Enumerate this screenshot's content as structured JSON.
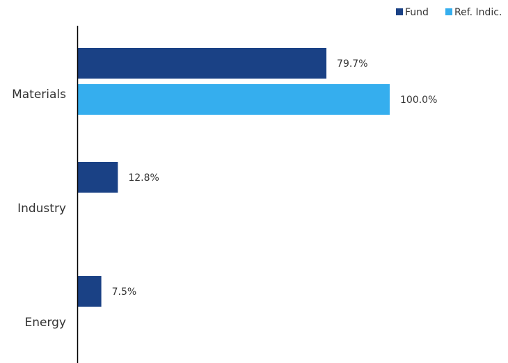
{
  "chart_data": {
    "type": "bar",
    "orientation": "horizontal",
    "categories": [
      "Materials",
      "Industry",
      "Energy"
    ],
    "series": [
      {
        "name": "Fund",
        "color": "#1a4185",
        "values": [
          79.7,
          12.8,
          7.5
        ],
        "labels": [
          "79.7%",
          "12.8%",
          "7.5%"
        ]
      },
      {
        "name": "Ref. Indic.",
        "color": "#35aeee",
        "values": [
          100.0,
          null,
          null
        ],
        "labels": [
          "100.0%",
          "",
          ""
        ]
      }
    ],
    "xlim": [
      0,
      100
    ],
    "grid": false,
    "legend": "top-right",
    "title": "",
    "xlabel": "",
    "ylabel": ""
  }
}
